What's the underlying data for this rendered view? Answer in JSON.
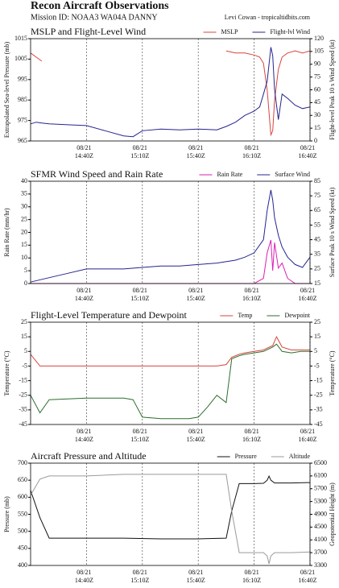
{
  "header": {
    "title": "Recon Aircraft Observations",
    "mission": "Mission ID: NOAA3 WA04A DANNY",
    "credit": "Levi Cowan - tropicaltidbits.com"
  },
  "chart_data": [
    {
      "type": "line",
      "title": "MSLP and Flight-Level Wind",
      "ylabel": "Extrapolated Sea-level Pressure (mb)",
      "y2label": "Flight-level Peak 10 s Wind Speed (kt)",
      "x": [
        850,
        853,
        856,
        860,
        870,
        880,
        890,
        900,
        905,
        910,
        920,
        930,
        940,
        950,
        955,
        960,
        965,
        970,
        973,
        975,
        977,
        979,
        980,
        981,
        983,
        985,
        988,
        992,
        996,
        1000
      ],
      "xlim": [
        850,
        1000
      ],
      "xticks": [
        {
          "value": 880,
          "label": "14:40Z",
          "date": "08/21"
        },
        {
          "value": 910,
          "label": "15:10Z",
          "date": "08/21"
        },
        {
          "value": 940,
          "label": "15:40Z",
          "date": "08/21"
        },
        {
          "value": 970,
          "label": "16:10Z",
          "date": "08/21"
        },
        {
          "value": 1000,
          "label": "16:40Z",
          "date": "08/21"
        }
      ],
      "ylim": [
        965,
        1015
      ],
      "yticks": [
        965,
        975,
        985,
        995,
        1005,
        1015
      ],
      "y2lim": [
        0,
        120
      ],
      "y2ticks": [
        0,
        15,
        30,
        45,
        60,
        75,
        90,
        105,
        120
      ],
      "series": [
        {
          "name": "MSLP",
          "color": "#d9443c",
          "values": [
            1008,
            1006,
            1004,
            null,
            null,
            null,
            null,
            null,
            null,
            null,
            null,
            null,
            null,
            null,
            1009,
            1008,
            1008,
            1007,
            1006,
            1003,
            990,
            968,
            970,
            985,
            1000,
            1006,
            1008,
            1009,
            1008,
            1009
          ]
        },
        {
          "name": "Flight-lvl Wind",
          "color": "#24248f",
          "axis": "y2",
          "values": [
            20,
            22,
            21,
            20,
            19,
            18,
            12,
            6,
            5,
            12,
            14,
            13,
            14,
            13,
            17,
            22,
            30,
            35,
            40,
            55,
            70,
            110,
            100,
            60,
            25,
            55,
            50,
            42,
            38,
            40
          ]
        }
      ]
    },
    {
      "type": "line",
      "title": "SFMR Wind Speed and Rain Rate",
      "ylabel": "Rain Rate (mm/hr)",
      "y2label": "Surface Peak 10 s Wind Speed (kt)",
      "x": [
        850,
        860,
        870,
        880,
        890,
        900,
        910,
        920,
        930,
        940,
        950,
        960,
        965,
        970,
        975,
        977,
        979,
        980,
        981,
        983,
        985,
        988,
        992,
        996,
        1000
      ],
      "xlim": [
        850,
        1000
      ],
      "xticks": [
        {
          "value": 880,
          "label": "14:40Z",
          "date": "08/21"
        },
        {
          "value": 910,
          "label": "15:10Z",
          "date": "08/21"
        },
        {
          "value": 940,
          "label": "15:40Z",
          "date": "08/21"
        },
        {
          "value": 970,
          "label": "16:10Z",
          "date": "08/21"
        },
        {
          "value": 1000,
          "label": "16:40Z",
          "date": "08/21"
        }
      ],
      "ylim": [
        0,
        40
      ],
      "yticks": [
        0,
        5,
        10,
        15,
        20,
        25,
        30,
        35,
        40
      ],
      "y2lim": [
        15,
        85
      ],
      "y2ticks": [
        15,
        25,
        35,
        45,
        55,
        65,
        75,
        85
      ],
      "series": [
        {
          "name": "Rain Rate",
          "color": "#d91fb4",
          "values": [
            0,
            0,
            0,
            0,
            0,
            0,
            0,
            0,
            0,
            0,
            0,
            0,
            0,
            0,
            2,
            12,
            17,
            5,
            16,
            6,
            8,
            2,
            0,
            0,
            0
          ]
        },
        {
          "name": "Surface Wind",
          "color": "#24248f",
          "axis": "y2",
          "values": [
            16,
            19,
            22,
            25,
            25,
            25,
            26,
            27,
            27,
            28,
            29,
            31,
            33,
            36,
            45,
            65,
            79,
            72,
            60,
            48,
            40,
            33,
            28,
            26,
            33
          ]
        }
      ]
    },
    {
      "type": "line",
      "title": "Flight-Level Temperature and Dewpoint",
      "ylabel": "Temperature (°C)",
      "y2label": "Temperature (°C)",
      "x": [
        850,
        855,
        860,
        880,
        900,
        905,
        910,
        920,
        935,
        940,
        945,
        950,
        955,
        958,
        962,
        965,
        970,
        975,
        980,
        982,
        985,
        990,
        995,
        1000
      ],
      "xlim": [
        850,
        1000
      ],
      "xticks": [
        {
          "value": 880,
          "label": "14:40Z",
          "date": "08/21"
        },
        {
          "value": 910,
          "label": "15:10Z",
          "date": "08/21"
        },
        {
          "value": 940,
          "label": "15:40Z",
          "date": "08/21"
        },
        {
          "value": 970,
          "label": "16:10Z",
          "date": "08/21"
        },
        {
          "value": 1000,
          "label": "16:40Z",
          "date": "08/21"
        }
      ],
      "ylim": [
        -45,
        25
      ],
      "yticks": [
        -45,
        -35,
        -25,
        -15,
        -5,
        5,
        15,
        25
      ],
      "y2lim": [
        -45,
        25
      ],
      "y2ticks": [
        -45,
        -35,
        -25,
        -15,
        -5,
        5,
        15,
        25
      ],
      "series": [
        {
          "name": "Temp",
          "color": "#d9443c",
          "values": [
            3,
            -5,
            -5,
            -5,
            -5,
            -5,
            -5,
            -5,
            -5,
            -5,
            -5,
            -5,
            -4,
            1,
            3,
            4,
            5,
            6,
            9,
            15,
            8,
            6,
            6,
            6
          ]
        },
        {
          "name": "Dewpoint",
          "color": "#2d6e2d",
          "values": [
            -25,
            -37,
            -28,
            -27,
            -27,
            -28,
            -40,
            -41,
            -41,
            -40,
            -33,
            -25,
            -30,
            0,
            2,
            3,
            4,
            5,
            8,
            10,
            5,
            4,
            5,
            5
          ]
        }
      ]
    },
    {
      "type": "line",
      "title": "Aircraft Pressure and Altitude",
      "ylabel": "Pressure (mb)",
      "y2label": "Geopotential Height (m)",
      "x": [
        850,
        855,
        860,
        880,
        900,
        920,
        940,
        955,
        958,
        962,
        965,
        970,
        975,
        977,
        978,
        979,
        981,
        985,
        990,
        1000
      ],
      "xlim": [
        850,
        1000
      ],
      "xticks": [
        {
          "value": 880,
          "label": "14:40Z",
          "date": "08/21"
        },
        {
          "value": 910,
          "label": "15:10Z",
          "date": "08/21"
        },
        {
          "value": 940,
          "label": "15:40Z",
          "date": "08/21"
        },
        {
          "value": 970,
          "label": "16:10Z",
          "date": "08/21"
        },
        {
          "value": 1000,
          "label": "16:40Z",
          "date": "08/21"
        }
      ],
      "ylim": [
        400,
        700
      ],
      "yticks": [
        400,
        450,
        500,
        550,
        600,
        650,
        700
      ],
      "y2lim": [
        3300,
        6500
      ],
      "y2ticks": [
        3300,
        3700,
        4100,
        4500,
        4900,
        5300,
        5700,
        6100,
        6500
      ],
      "series": [
        {
          "name": "Pressure",
          "color": "#111111",
          "values": [
            620,
            540,
            480,
            480,
            480,
            478,
            478,
            480,
            560,
            640,
            640,
            640,
            641,
            650,
            662,
            650,
            642,
            642,
            642,
            643
          ]
        },
        {
          "name": "Altitude",
          "color": "#9a9a9a",
          "axis": "y2",
          "values": [
            5500,
            6000,
            6100,
            6100,
            6150,
            6150,
            6150,
            6150,
            5000,
            3700,
            3700,
            3700,
            3700,
            3600,
            3350,
            3600,
            3700,
            3700,
            3700,
            3720
          ]
        }
      ]
    }
  ]
}
